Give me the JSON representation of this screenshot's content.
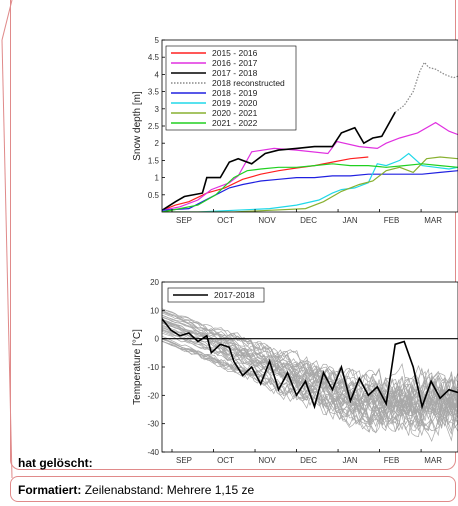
{
  "comments": {
    "deleted_label": "hat gelöscht:",
    "format_label": "Formatiert:",
    "format_text": "Zeilenabstand:  Mehrere 1,15 ze"
  },
  "chart_data": [
    {
      "type": "line",
      "title": "",
      "xlabel": "",
      "ylabel": "Snow depth [m]",
      "x_tick_labels": [
        "SEP",
        "OCT",
        "NOV",
        "DEC",
        "JAN",
        "FEB",
        "MAR"
      ],
      "xlim": [
        0,
        6.6
      ],
      "ylim": [
        0,
        5
      ],
      "y_ticks": [
        0.5,
        1,
        1.5,
        2,
        2.5,
        3,
        3.5,
        4,
        4.5,
        5
      ],
      "y_tick_labels": [
        "0.5",
        "1",
        "1.5",
        "2",
        "2.5",
        "3",
        "3.5",
        "4",
        "4.5",
        "5"
      ],
      "legend_position": "top-left",
      "grid": false,
      "series": [
        {
          "name": "2015 - 2016",
          "color": "#ff2020",
          "style": "solid",
          "x": [
            0,
            0.3,
            0.6,
            1.0,
            1.4,
            1.8,
            2.2,
            2.6,
            3.0,
            3.4,
            3.8,
            4.2,
            4.6
          ],
          "y": [
            0.05,
            0.2,
            0.3,
            0.55,
            0.7,
            0.95,
            1.1,
            1.2,
            1.28,
            1.35,
            1.45,
            1.55,
            1.6
          ]
        },
        {
          "name": "2016 - 2017",
          "color": "#e030e0",
          "style": "solid",
          "x": [
            0,
            0.4,
            0.8,
            1.1,
            1.5,
            1.7,
            2.0,
            2.5,
            3.0,
            3.7,
            3.9,
            4.4,
            4.8,
            5.0,
            5.3,
            5.7,
            6.1,
            6.4,
            6.6
          ],
          "y": [
            0.05,
            0.15,
            0.35,
            0.65,
            0.85,
            1.05,
            1.75,
            1.85,
            1.8,
            1.7,
            2.05,
            1.9,
            1.85,
            2.0,
            2.15,
            2.3,
            2.6,
            2.35,
            2.25
          ]
        },
        {
          "name": "2017 - 2018",
          "color": "#000000",
          "style": "solid",
          "x": [
            0,
            0.3,
            0.5,
            0.9,
            1.0,
            1.3,
            1.5,
            1.7,
            2.0,
            2.3,
            2.6,
            3.0,
            3.4,
            3.8,
            4.0,
            4.3,
            4.5,
            4.7,
            4.9,
            5.2
          ],
          "y": [
            0.05,
            0.3,
            0.45,
            0.55,
            1.0,
            1.0,
            1.45,
            1.55,
            1.4,
            1.7,
            1.8,
            1.85,
            1.9,
            1.9,
            2.3,
            2.45,
            2.0,
            2.15,
            2.2,
            2.9
          ]
        },
        {
          "name": "2018 reconstructed",
          "color": "#888888",
          "style": "dotted",
          "x": [
            5.2,
            5.4,
            5.6,
            5.75,
            5.85,
            5.95,
            6.1,
            6.3,
            6.5,
            6.6
          ],
          "y": [
            2.9,
            3.1,
            3.5,
            4.1,
            4.35,
            4.2,
            4.15,
            4.0,
            3.9,
            3.95
          ]
        },
        {
          "name": "2018 - 2019",
          "color": "#2020e0",
          "style": "solid",
          "x": [
            0,
            0.6,
            0.9,
            1.2,
            1.5,
            1.8,
            2.2,
            2.6,
            3.0,
            3.4,
            3.8,
            4.2,
            4.6,
            5.0,
            5.4,
            5.8,
            6.2,
            6.6
          ],
          "y": [
            0.05,
            0.1,
            0.3,
            0.5,
            0.7,
            0.8,
            0.9,
            0.95,
            1.0,
            1.0,
            1.05,
            1.05,
            1.1,
            1.1,
            1.1,
            1.1,
            1.15,
            1.2
          ]
        },
        {
          "name": "2019 - 2020",
          "color": "#20d8e8",
          "style": "solid",
          "x": [
            0,
            0.8,
            1.6,
            2.4,
            3.0,
            3.5,
            3.8,
            4.0,
            4.3,
            4.6,
            4.8,
            5.0,
            5.3,
            5.5,
            5.8,
            6.1,
            6.4,
            6.6
          ],
          "y": [
            0,
            0,
            0.05,
            0.1,
            0.2,
            0.35,
            0.55,
            0.65,
            0.7,
            0.85,
            1.4,
            1.35,
            1.5,
            1.7,
            1.35,
            1.3,
            1.25,
            1.3
          ]
        },
        {
          "name": "2020 - 2021",
          "color": "#88b030",
          "style": "solid",
          "x": [
            0,
            0.8,
            1.6,
            2.4,
            3.2,
            3.6,
            4.0,
            4.4,
            4.7,
            5.0,
            5.3,
            5.6,
            5.9,
            6.2,
            6.6
          ],
          "y": [
            0,
            0,
            0,
            0.05,
            0.1,
            0.3,
            0.6,
            0.8,
            0.9,
            1.2,
            1.3,
            1.15,
            1.55,
            1.6,
            1.55
          ]
        },
        {
          "name": "2021 - 2022",
          "color": "#20d020",
          "style": "solid",
          "x": [
            0,
            0.4,
            0.8,
            1.2,
            1.6,
            1.9,
            2.2,
            2.6,
            3.0,
            3.4,
            3.8,
            4.2,
            4.6,
            5.0,
            5.4,
            5.8,
            6.2,
            6.6
          ],
          "y": [
            0,
            0.1,
            0.2,
            0.5,
            1.0,
            1.2,
            1.25,
            1.3,
            1.3,
            1.35,
            1.4,
            1.35,
            1.35,
            1.3,
            1.35,
            1.4,
            1.35,
            1.3
          ]
        }
      ]
    },
    {
      "type": "line",
      "title": "",
      "xlabel": "",
      "ylabel": "Temperature [°C]",
      "x_tick_labels": [
        "SEP",
        "OCT",
        "NOV",
        "DEC",
        "JAN",
        "FEB",
        "MAR"
      ],
      "xlim": [
        0,
        6.6
      ],
      "ylim": [
        -40,
        20
      ],
      "y_ticks": [
        -40,
        -30,
        -20,
        -10,
        0,
        10,
        20
      ],
      "y_tick_labels": [
        "-40",
        "-30",
        "-20",
        "-10",
        "0",
        "10",
        "20"
      ],
      "legend_position": "top-left",
      "grid": false,
      "reference_line": 0,
      "historical_ensemble": {
        "count": 40,
        "color": "#a8a8a8",
        "mean_start": 5,
        "mean_end": -22,
        "spread": 6
      },
      "series": [
        {
          "name": "2017-2018",
          "color": "#000000",
          "style": "solid",
          "x": [
            0,
            0.2,
            0.4,
            0.6,
            0.8,
            1.0,
            1.1,
            1.3,
            1.5,
            1.6,
            1.8,
            2.0,
            2.2,
            2.4,
            2.6,
            2.8,
            3.0,
            3.2,
            3.4,
            3.6,
            3.8,
            4.0,
            4.2,
            4.4,
            4.6,
            4.8,
            5.0,
            5.2,
            5.4,
            5.6,
            5.8,
            6.0,
            6.2,
            6.4,
            6.6
          ],
          "y": [
            7,
            3,
            1,
            2,
            -1,
            1,
            -5,
            -2,
            -3,
            -8,
            -13,
            -10,
            -16,
            -8,
            -18,
            -12,
            -20,
            -15,
            -24,
            -12,
            -18,
            -10,
            -22,
            -14,
            -20,
            -17,
            -23,
            -2,
            -1,
            -10,
            -24,
            -15,
            -21,
            -18,
            -19
          ]
        }
      ]
    }
  ]
}
